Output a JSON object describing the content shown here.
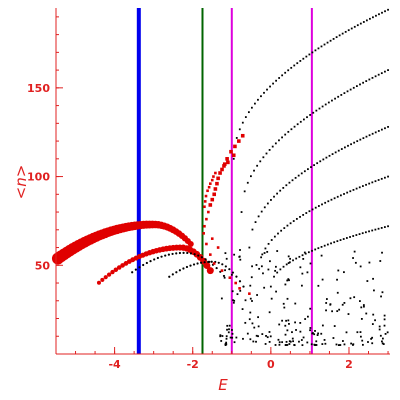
{
  "chart_data": {
    "type": "scatter",
    "title": "",
    "xlabel": "E",
    "ylabel": "<n>",
    "xlim": [
      -5.5,
      3.05
    ],
    "ylim": [
      0,
      195
    ],
    "axis_color": "#e02020",
    "label_color": "#e02020",
    "x_ticks": [
      {
        "value": -4,
        "label": "-4"
      },
      {
        "value": -2,
        "label": "-2"
      },
      {
        "value": 0,
        "label": "0"
      },
      {
        "value": 2,
        "label": "2"
      }
    ],
    "y_ticks": [
      {
        "value": 50,
        "label": "50"
      },
      {
        "value": 100,
        "label": "100"
      },
      {
        "value": 150,
        "label": "150"
      }
    ],
    "vlines": [
      {
        "name": "",
        "x": -3.38,
        "color": "#0000ee",
        "width": 4
      },
      {
        "name": "",
        "x": -1.75,
        "color": "#006400",
        "width": 2
      },
      {
        "name": "",
        "x": -1.0,
        "color": "#dd00dd",
        "width": 2
      },
      {
        "name": "",
        "x": 1.05,
        "color": "#dd00dd",
        "width": 2
      }
    ],
    "curves": [
      {
        "name": "",
        "color": "#e00000",
        "kind": "bubble",
        "x_from": -5.45,
        "x_to": -2.05,
        "n": 46,
        "y_peak": 73,
        "x_peak": -3.0,
        "k": 3.2,
        "y_end": 62,
        "size_from": 6,
        "size_to": 3
      },
      {
        "name": "",
        "color": "#e00000",
        "kind": "bubble",
        "x_from": -4.4,
        "x_to": -1.55,
        "n": 34,
        "y_peak": 60,
        "x_peak": -2.3,
        "k": 4.5,
        "y_end": 47,
        "size_from": 2,
        "size_to": 3.5
      },
      {
        "name": "",
        "color": "#000000",
        "kind": "dot",
        "x_from": -3.55,
        "x_to": -1.2,
        "n": 26,
        "y_peak": 57,
        "x_peak": -2.2,
        "k": 6,
        "y_end": 44,
        "size_from": 1.1,
        "size_to": 1.1
      },
      {
        "name": "",
        "color": "#000000",
        "kind": "dot",
        "x_from": -2.6,
        "x_to": -0.7,
        "n": 22,
        "y_peak": 52,
        "x_peak": -1.5,
        "k": 7,
        "y_end": 38,
        "size_from": 1.1,
        "size_to": 1.1
      }
    ],
    "clusters": [
      {
        "name": "",
        "color": "#e00000",
        "points": [
          [
            -1.72,
            68
          ],
          [
            -1.65,
            62
          ],
          [
            -1.55,
            56
          ],
          [
            -1.45,
            51
          ],
          [
            -1.25,
            47
          ],
          [
            -1.05,
            43
          ],
          [
            -0.9,
            40
          ],
          [
            -0.8,
            37
          ],
          [
            -0.55,
            34
          ],
          [
            -1.7,
            83
          ],
          [
            -1.68,
            86
          ],
          [
            -1.66,
            89
          ],
          [
            -1.62,
            92
          ],
          [
            -1.58,
            94
          ],
          [
            -1.55,
            96
          ],
          [
            -1.5,
            98
          ],
          [
            -1.47,
            100
          ],
          [
            -1.42,
            102
          ],
          [
            -1.6,
            80
          ],
          [
            -1.65,
            76
          ],
          [
            -1.7,
            72
          ],
          [
            -1.5,
            65
          ],
          [
            -1.35,
            60
          ]
        ],
        "size": 2.6
      },
      {
        "name": "",
        "color": "#e00000",
        "points": [
          [
            -1.55,
            84
          ],
          [
            -1.5,
            87
          ],
          [
            -1.45,
            90
          ],
          [
            -1.42,
            93
          ],
          [
            -1.38,
            96
          ],
          [
            -1.35,
            99
          ],
          [
            -1.3,
            102
          ],
          [
            -1.25,
            104
          ],
          [
            -1.2,
            106
          ],
          [
            -1.12,
            110
          ],
          [
            -1.02,
            114
          ],
          [
            -0.92,
            117
          ],
          [
            -0.82,
            120
          ],
          [
            -0.72,
            123
          ],
          [
            -0.95,
            112
          ],
          [
            -1.18,
            107
          ],
          [
            -1.1,
            108
          ]
        ],
        "size": 3.6
      }
    ],
    "fans": [
      {
        "name": "",
        "color": "#000000",
        "x_from": -0.95,
        "x_to": 3.0,
        "n": 52,
        "y_from": 110,
        "y_to": 194
      },
      {
        "name": "",
        "color": "#000000",
        "x_from": -0.75,
        "x_to": 3.0,
        "n": 48,
        "y_from": 80,
        "y_to": 160
      },
      {
        "name": "",
        "color": "#000000",
        "x_from": -0.55,
        "x_to": 3.0,
        "n": 46,
        "y_from": 60,
        "y_to": 128
      },
      {
        "name": "",
        "color": "#000000",
        "x_from": -0.3,
        "x_to": 3.0,
        "n": 42,
        "y_from": 48,
        "y_to": 100
      },
      {
        "name": "",
        "color": "#000000",
        "x_from": 0.0,
        "x_to": 3.0,
        "n": 38,
        "y_from": 38,
        "y_to": 72
      }
    ],
    "noise": {
      "name": "",
      "color": "#000000",
      "x_range": [
        -1.3,
        3.0
      ],
      "y_range": [
        5,
        60
      ],
      "n": 230,
      "seed": 17
    }
  }
}
